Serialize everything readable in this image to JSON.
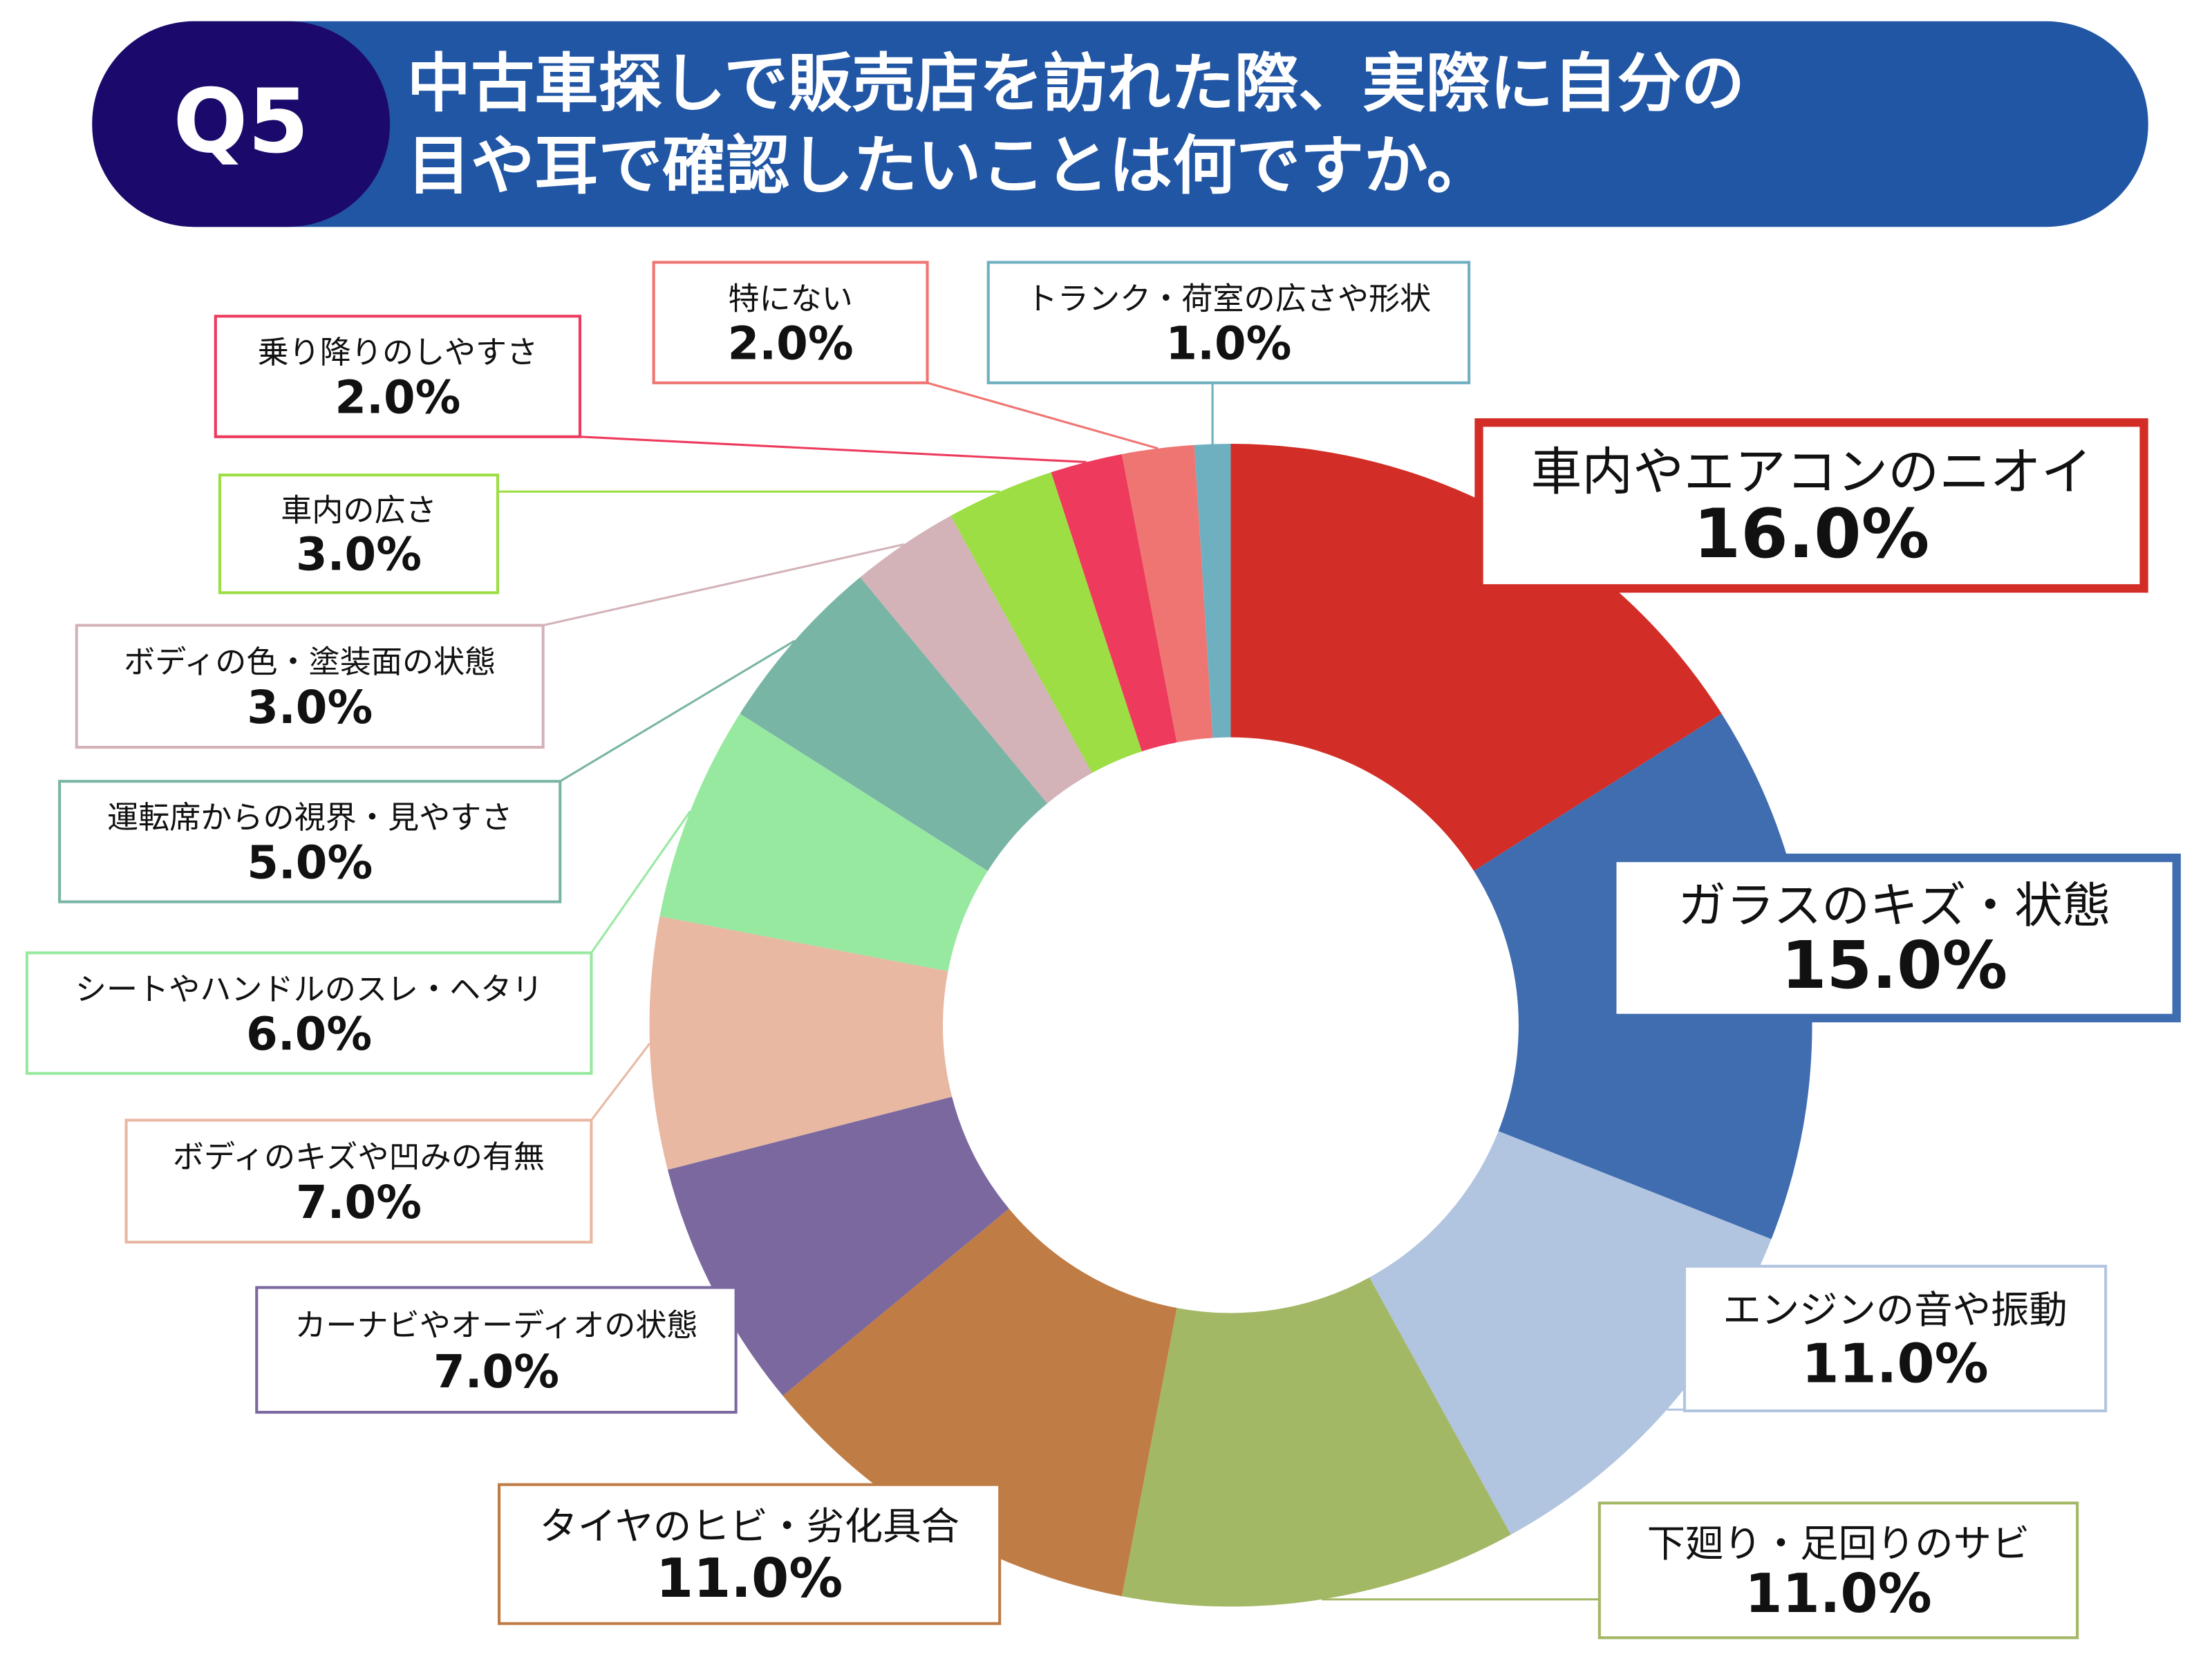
{
  "chart_data": {
    "type": "donut",
    "badge": "Q5",
    "title_lines": [
      "中古車探しで販売店を訪れた際、実際に自分の",
      "目や耳で確認したいことは何ですか。"
    ],
    "categories": [
      "車内やエアコンのニオイ",
      "ガラスのキズ・状態",
      "エンジンの音や振動",
      "下廻り・足回りのサビ",
      "タイヤのヒビ・劣化具合",
      "カーナビやオーディオの状態",
      "ボディのキズや凹みの有無",
      "シートやハンドルのスレ・ヘタリ",
      "運転席からの視界・見やすさ",
      "ボディの色・塗装面の状態",
      "車内の広さ",
      "乗り降りのしやすさ",
      "特にない",
      "トランク・荷室の広さや形状"
    ],
    "values": [
      16,
      15,
      11,
      11,
      11,
      7,
      7,
      6,
      5,
      3,
      3,
      2,
      2,
      1
    ],
    "value_labels": [
      "16.0%",
      "15.0%",
      "11.0%",
      "11.0%",
      "11.0%",
      "7.0%",
      "7.0%",
      "6.0%",
      "5.0%",
      "3.0%",
      "3.0%",
      "2.0%",
      "2.0%",
      "1.0%"
    ],
    "colors": [
      "#d22d26",
      "#3f6db0",
      "#b1c4e0",
      "#a3b865",
      "#c07c45",
      "#7b689f",
      "#e8b8a3",
      "#97e9a0",
      "#79b5a5",
      "#d3b2b8",
      "#9cde43",
      "#ee3a5c",
      "#ef7572",
      "#6fb0c0"
    ]
  }
}
